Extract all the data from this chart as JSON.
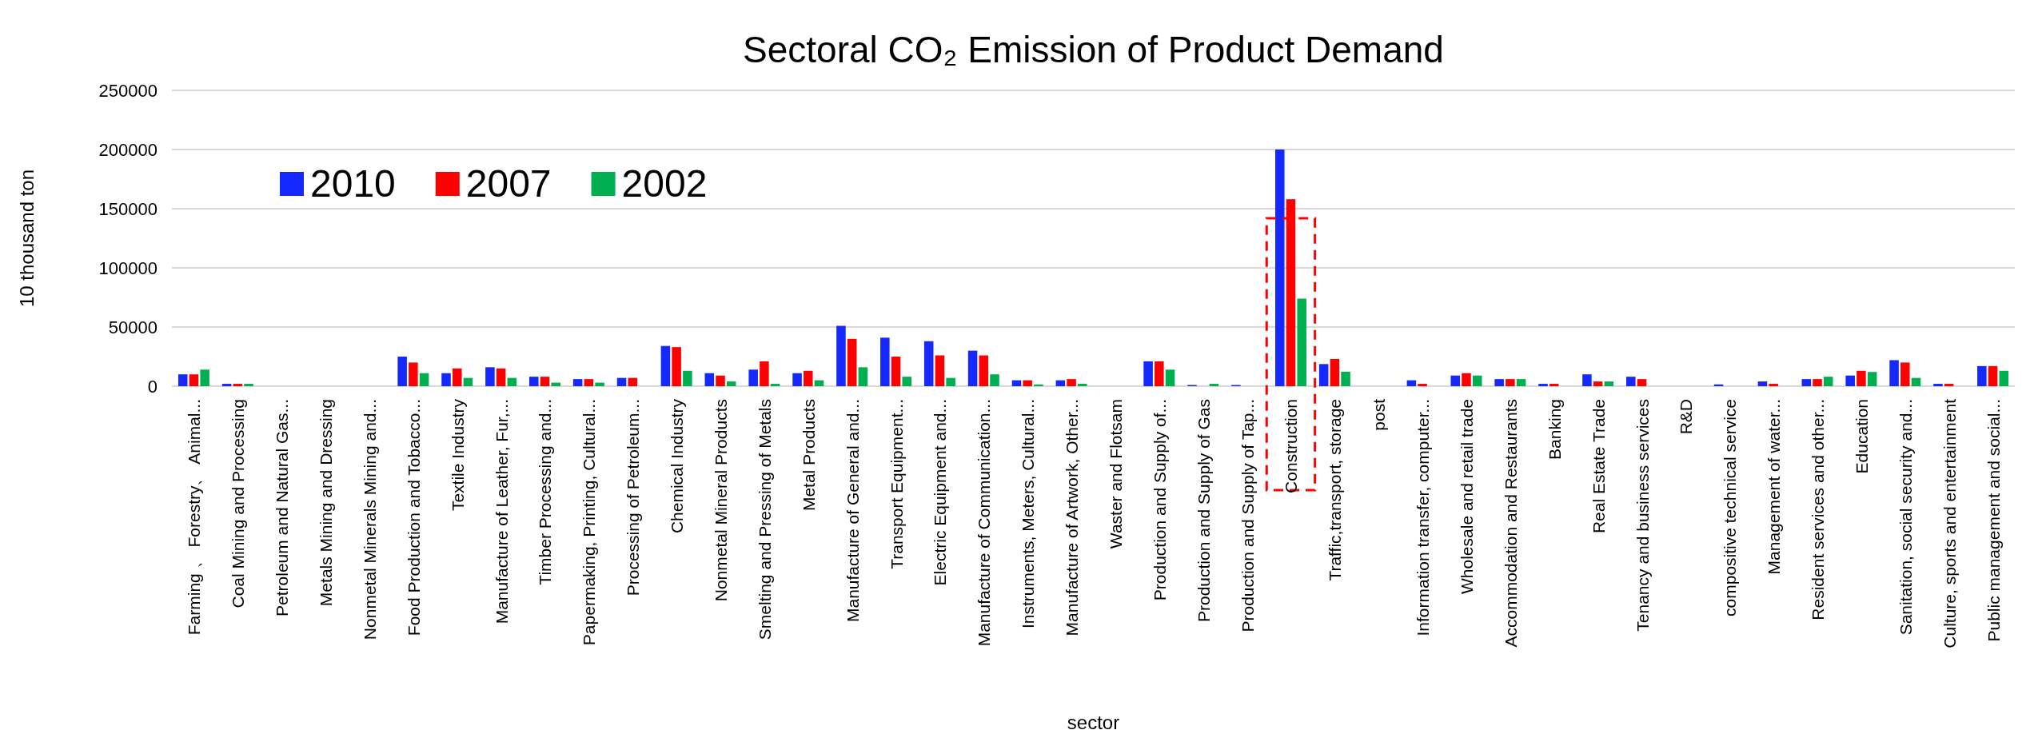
{
  "chart_data": {
    "type": "bar",
    "title": "Sectoral CO₂ Emission of Product Demand",
    "xlabel": "sector",
    "ylabel": "10 thousand ton",
    "categories": [
      "Farming 、 Forestry、 Animal...",
      "Coal Mining and Processing",
      "Petroleum and Natural Gas...",
      "Metals Mining and Dressing",
      "Nonmetal Minerals Mining and...",
      "Food Production and Tobacco...",
      "Textile Industry",
      "Manufacture of Leather, Fur,...",
      "Timber Processing and...",
      "Papermaking, Printing, Cultural...",
      "Processing of Petroleum...",
      "Chemical Industry",
      "Nonmetal Mineral Products",
      "Smelting and Pressing of Metals",
      "Metal Products",
      "Manufacture of General and...",
      "Transport Equipment...",
      "Electric Equipment and...",
      "Manufacture of Communication...",
      "Instruments, Meters, Cultural...",
      "Manufacture of Artwork, Other...",
      "Waster and Flotsam",
      "Production and Supply of...",
      "Production and Supply of Gas",
      "Production and Supply of Tap...",
      "Construction",
      "Traffic,transport,  storage",
      "post",
      "Information transfer, computer...",
      "Wholesale and retail trade",
      "Accommodation and Restaurants",
      "Banking",
      "Real Estate Trade",
      "Tenancy and business services",
      "R&D",
      "compositive technical  service",
      "Management of water...",
      "Resident  services and other...",
      "Education",
      "Sanitation,  social security and...",
      "Culture, sports and entertainment",
      "Public management and social..."
    ],
    "series": [
      {
        "name": "2010",
        "color": "#1428ff",
        "values": [
          10000,
          2000,
          null,
          null,
          null,
          25000,
          11000,
          16000,
          8000,
          6000,
          7000,
          34000,
          11000,
          14000,
          11000,
          51000,
          41000,
          38000,
          30000,
          5000,
          5000,
          null,
          21000,
          1000,
          1000,
          200000,
          18700,
          null,
          5000,
          9000,
          6000,
          2000,
          10000,
          8000,
          null,
          1500,
          4000,
          6000,
          9000,
          22000,
          2000,
          17000
        ]
      },
      {
        "name": "2007",
        "color": "#ff0000",
        "values": [
          10000,
          2000,
          null,
          null,
          null,
          20000,
          15000,
          15000,
          8000,
          6000,
          7000,
          33000,
          9000,
          21000,
          13000,
          40000,
          25000,
          26000,
          26000,
          5000,
          6000,
          null,
          21000,
          null,
          null,
          158000,
          23000,
          null,
          2000,
          11000,
          6000,
          2000,
          4000,
          6000,
          null,
          null,
          2000,
          6000,
          13000,
          20000,
          2000,
          17000
        ]
      },
      {
        "name": "2002",
        "color": "#00b050",
        "values": [
          14000,
          2000,
          null,
          null,
          null,
          11000,
          7000,
          7000,
          3000,
          3000,
          null,
          13000,
          4000,
          2000,
          5000,
          16000,
          8000,
          7000,
          10000,
          1500,
          2000,
          null,
          14000,
          2000,
          null,
          74000,
          12200,
          null,
          null,
          9000,
          6000,
          null,
          4000,
          null,
          null,
          null,
          null,
          8000,
          12000,
          7000,
          null,
          13000
        ]
      }
    ],
    "ylim": [
      0,
      250000
    ],
    "yticks": [
      0,
      50000,
      100000,
      150000,
      200000,
      250000
    ],
    "grid": "y",
    "legend": "top left"
  }
}
